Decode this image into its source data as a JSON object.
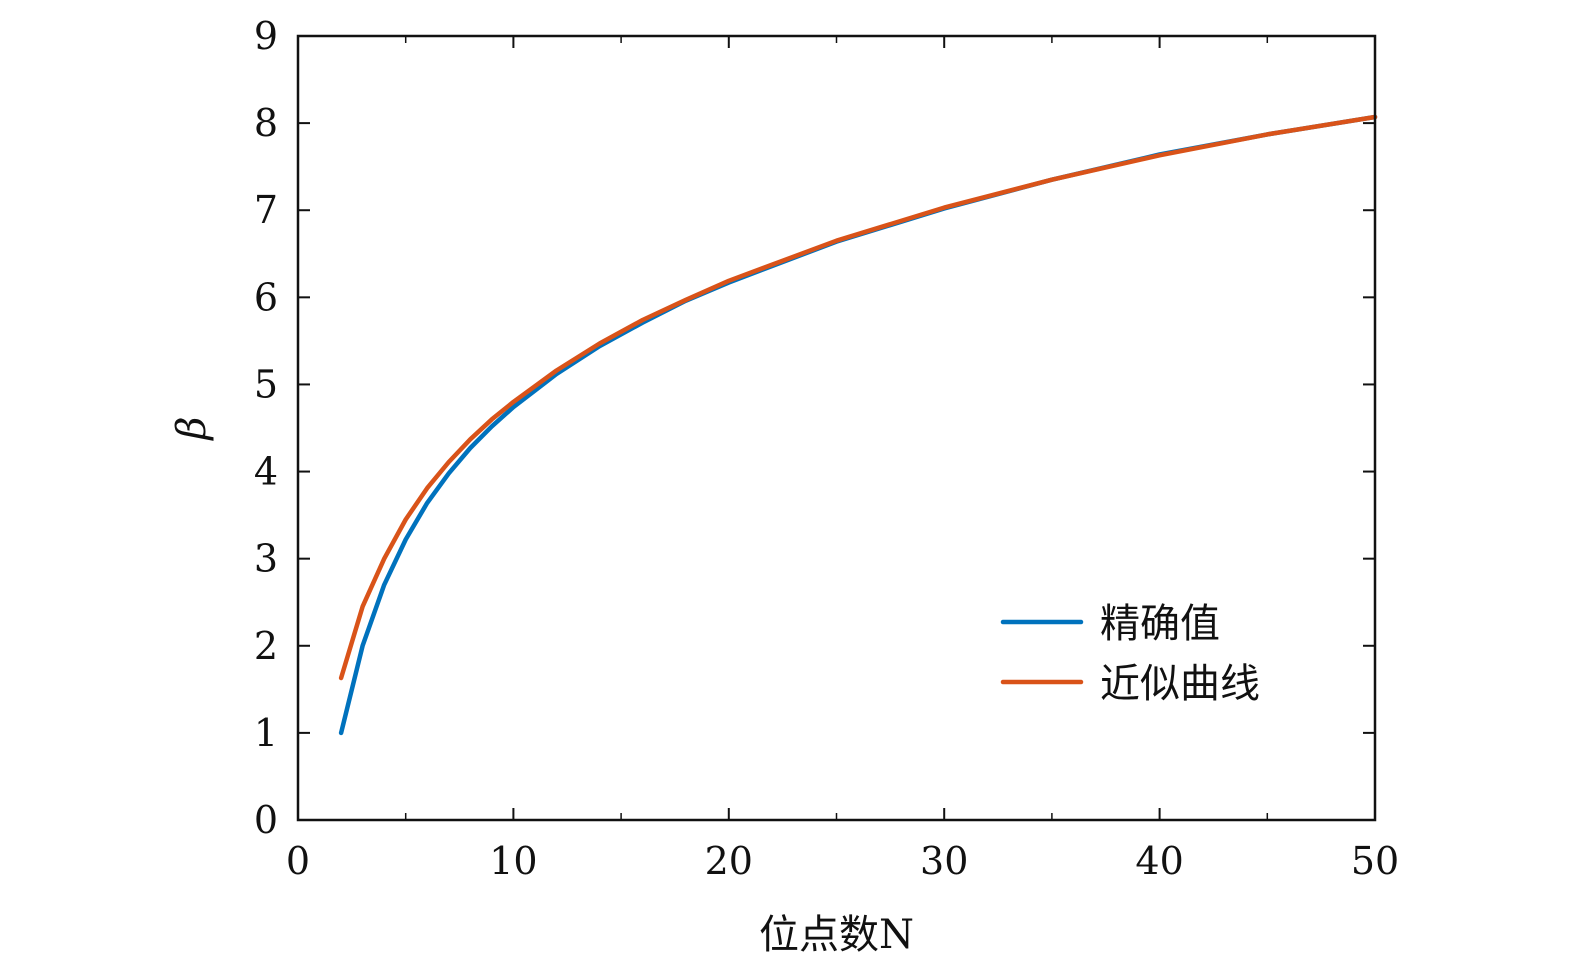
{
  "chart_data": {
    "type": "line",
    "xlabel": "位点数N",
    "ylabel": "β",
    "xlim": [
      0,
      50
    ],
    "ylim": [
      0,
      9
    ],
    "xticks": [
      0,
      10,
      20,
      30,
      40,
      50
    ],
    "yticks": [
      0,
      1,
      2,
      3,
      4,
      5,
      6,
      7,
      8,
      9
    ],
    "xticks_minor": [
      5,
      15,
      25,
      35,
      45
    ],
    "grid": false,
    "legend_position": "lower-right",
    "series": [
      {
        "name": "精确值",
        "color": "#0072BD",
        "x": [
          2,
          3,
          4,
          5,
          6,
          7,
          8,
          9,
          10,
          12,
          14,
          16,
          18,
          20,
          25,
          30,
          35,
          40,
          45,
          50
        ],
        "y": [
          1.0,
          2.0,
          2.7,
          3.22,
          3.64,
          3.98,
          4.27,
          4.52,
          4.74,
          5.12,
          5.44,
          5.71,
          5.96,
          6.17,
          6.64,
          7.02,
          7.35,
          7.64,
          7.87,
          8.07
        ]
      },
      {
        "name": "近似曲线",
        "color": "#D95319",
        "x": [
          2,
          3,
          4,
          5,
          6,
          7,
          8,
          9,
          10,
          12,
          14,
          16,
          18,
          20,
          25,
          30,
          35,
          40,
          45,
          50
        ],
        "y": [
          1.63,
          2.45,
          3.0,
          3.45,
          3.81,
          4.11,
          4.37,
          4.6,
          4.8,
          5.16,
          5.47,
          5.74,
          5.97,
          6.19,
          6.65,
          7.03,
          7.35,
          7.63,
          7.87,
          8.07
        ]
      }
    ]
  }
}
